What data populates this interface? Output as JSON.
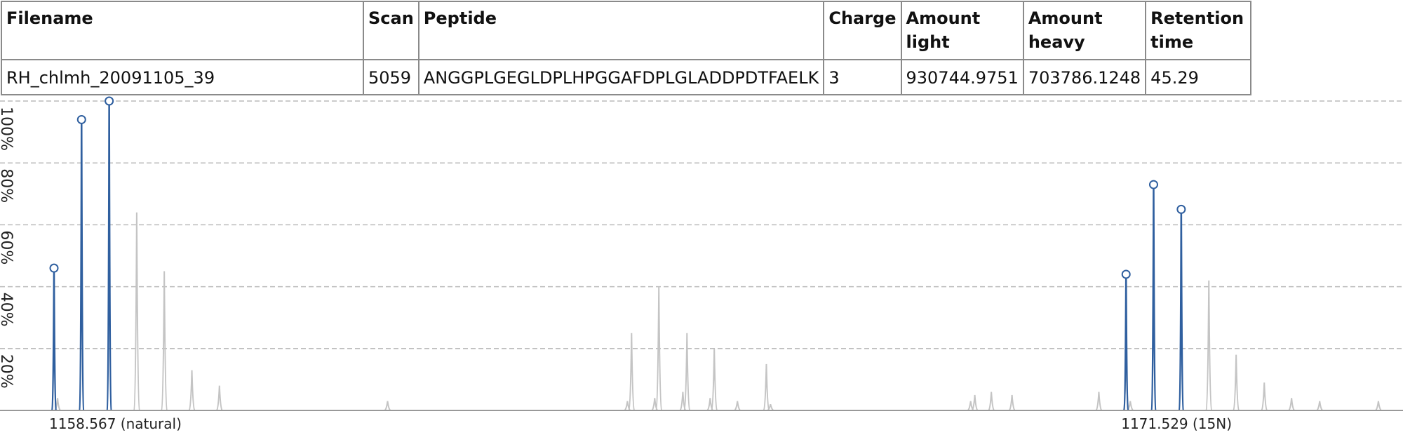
{
  "table": {
    "headers": [
      "Filename",
      "Scan",
      "Peptide",
      "Charge",
      "Amount light",
      "Amount heavy",
      "Retention time"
    ],
    "row": [
      "RH_chlmh_20091105_39",
      "5059",
      "ANGGPLGEGLDPLHPGGAFDPLGLADDPDTFAELK",
      "3",
      "930744.9751",
      "703786.1248",
      "45.29"
    ]
  },
  "chart_data": {
    "type": "line",
    "title": "",
    "xlabel": "",
    "ylabel": "",
    "ylim": [
      0,
      100
    ],
    "yticks": [
      "20%",
      "40%",
      "60%",
      "80%",
      "100%"
    ],
    "grid": true,
    "grid_style": "dashed",
    "x_labels": [
      {
        "text": "1158.567 (natural)",
        "x": 1158.567
      },
      {
        "text": "1171.529 (15N)",
        "x": 1171.529
      }
    ],
    "colors": {
      "highlight": "#2f5f9f",
      "background_peaks": "#c4c4c4",
      "grid": "#bbbbbb",
      "axis": "#999999"
    },
    "series": [
      {
        "role": "natural isotope peaks (marked)",
        "x": [
          1158.567,
          1158.9,
          1159.234
        ],
        "values": [
          46,
          94,
          100
        ]
      },
      {
        "role": "15N isotope peaks (marked)",
        "x": [
          1171.529,
          1171.862,
          1172.196
        ],
        "values": [
          44,
          73,
          65
        ]
      },
      {
        "role": "other peaks",
        "x": [
          1158.61,
          1159.567,
          1159.9,
          1160.234,
          1160.567,
          1162.6,
          1165.5,
          1165.55,
          1165.83,
          1165.88,
          1166.17,
          1166.22,
          1166.5,
          1166.55,
          1166.83,
          1167.18,
          1167.23,
          1169.65,
          1169.7,
          1169.9,
          1170.15,
          1171.2,
          1171.53,
          1171.58,
          1172.53,
          1172.86,
          1173.2,
          1173.53,
          1173.87,
          1174.58
        ],
        "values": [
          4,
          64,
          45,
          13,
          8,
          3,
          3,
          25,
          4,
          40,
          6,
          25,
          4,
          20,
          3,
          15,
          2,
          3,
          5,
          6,
          5,
          6,
          19,
          3,
          42,
          18,
          9,
          4,
          3,
          3
        ]
      }
    ]
  }
}
